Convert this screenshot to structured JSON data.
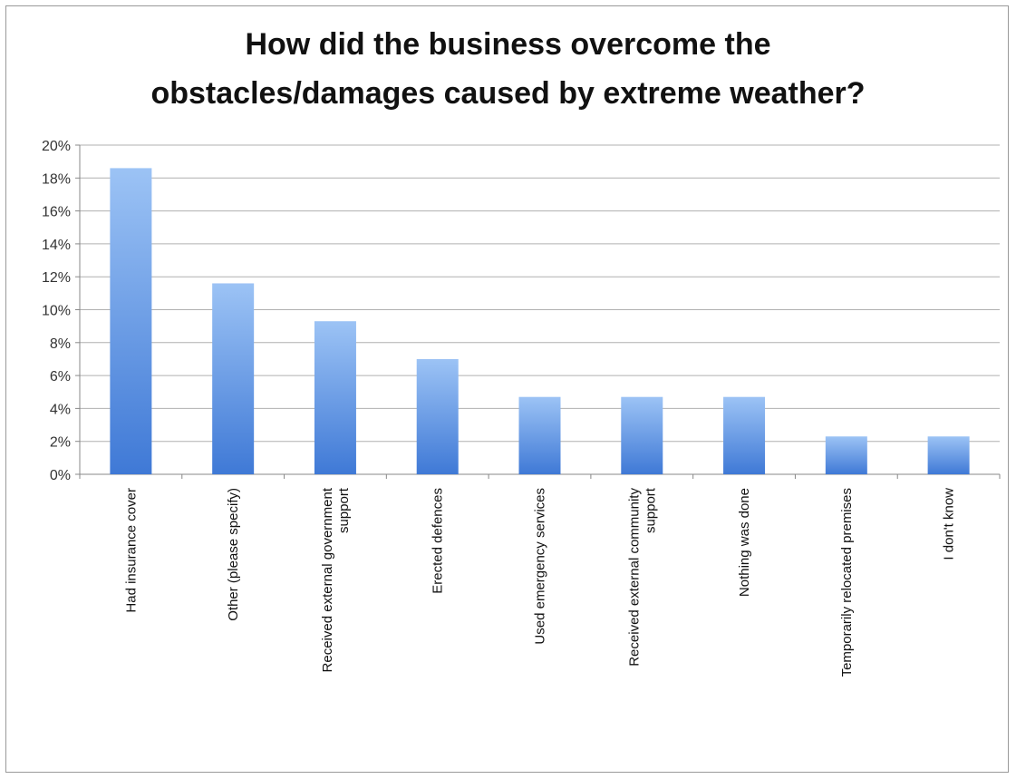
{
  "chart_data": {
    "type": "bar",
    "title": "How did the business overcome the obstacles/damages caused by extreme weather?",
    "title_lines": [
      "How did the business overcome the",
      "obstacles/damages caused by extreme weather?"
    ],
    "categories": [
      "Had insurance cover",
      "Other (please specify)",
      "Received external government support",
      "Erected defences",
      "Used emergency services",
      "Received external community support",
      "Nothing was done",
      "Temporarily relocated premises",
      "I don't know"
    ],
    "category_lines": [
      [
        "Had insurance cover"
      ],
      [
        "Other (please specify)"
      ],
      [
        "Received external government",
        "support"
      ],
      [
        "Erected defences"
      ],
      [
        "Used emergency services"
      ],
      [
        "Received external community",
        "support"
      ],
      [
        "Nothing was done"
      ],
      [
        "Temporarily relocated premises"
      ],
      [
        "I don't know"
      ]
    ],
    "values": [
      18.6,
      11.6,
      9.3,
      7.0,
      4.7,
      4.7,
      4.7,
      2.3,
      2.3
    ],
    "ylim": [
      0,
      20
    ],
    "yticks": [
      "0%",
      "2%",
      "4%",
      "6%",
      "8%",
      "10%",
      "12%",
      "14%",
      "16%",
      "18%",
      "20%"
    ],
    "grid": true,
    "legend": "none",
    "bar_color_top": "#9cc3f5",
    "bar_color_bottom": "#3f79d6",
    "xlabel": "",
    "ylabel": ""
  }
}
